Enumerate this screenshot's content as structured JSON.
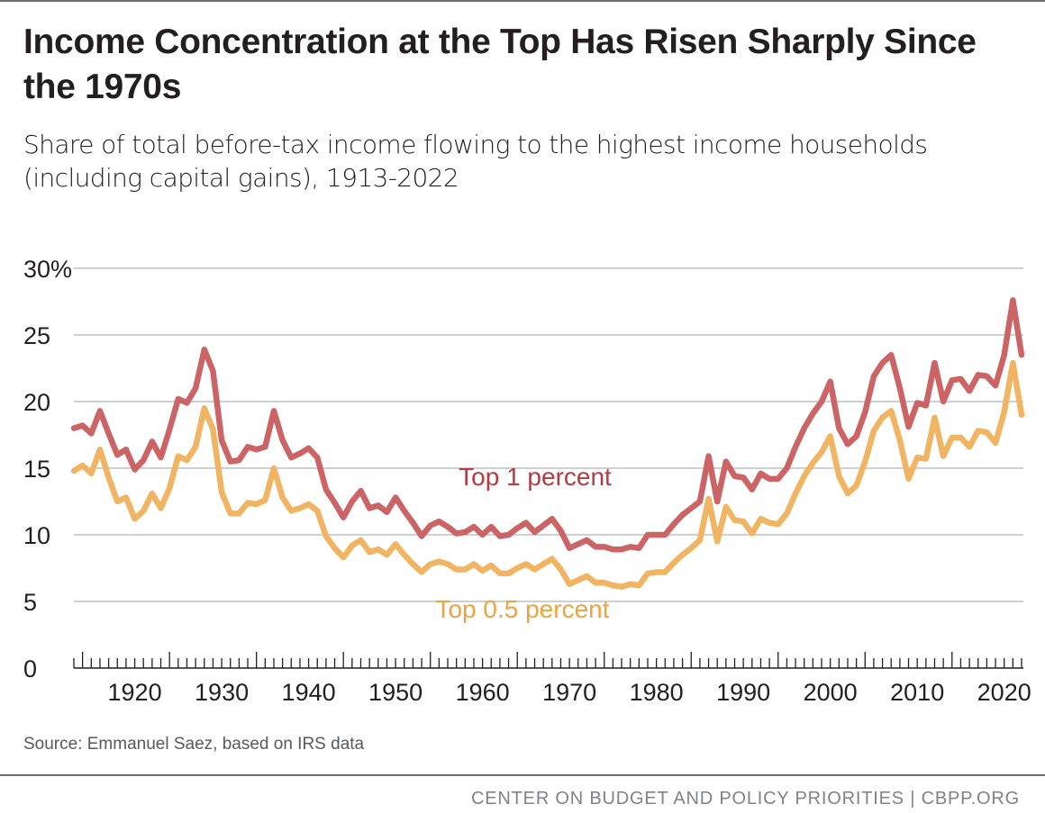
{
  "title": "Income Concentration at the Top Has Risen Sharply Since the 1970s",
  "subtitle": "Share of total before-tax income flowing to the highest income households (including capital gains), 1913-2022",
  "source": "Source: Emmanuel Saez, based on IRS data",
  "footer": "CENTER ON BUDGET AND POLICY PRIORITIES | CBPP.ORG",
  "colors": {
    "top1": "#cc6365",
    "top05": "#f0b463",
    "top1_label": "#b83a3f",
    "top05_label": "#eda33f",
    "grid": "#b1b3b6",
    "axis": "#231f20"
  },
  "chart_data": {
    "type": "line",
    "title": "Income Concentration at the Top Has Risen Sharply Since the 1970s",
    "xlabel": "",
    "ylabel": "",
    "xlim": [
      1913,
      2022
    ],
    "ylim": [
      0,
      30
    ],
    "y_ticks": [
      0,
      5,
      10,
      15,
      20,
      25,
      30
    ],
    "y_tick_labels": [
      "0",
      "5",
      "10",
      "15",
      "20",
      "25",
      "30%"
    ],
    "x_tick_labels": [
      "1920",
      "1930",
      "1940",
      "1950",
      "1960",
      "1970",
      "1980",
      "1990",
      "2000",
      "2010",
      "2020"
    ],
    "grid": true,
    "x": [
      1913,
      1914,
      1915,
      1916,
      1917,
      1918,
      1919,
      1920,
      1921,
      1922,
      1923,
      1924,
      1925,
      1926,
      1927,
      1928,
      1929,
      1930,
      1931,
      1932,
      1933,
      1934,
      1935,
      1936,
      1937,
      1938,
      1939,
      1940,
      1941,
      1942,
      1943,
      1944,
      1945,
      1946,
      1947,
      1948,
      1949,
      1950,
      1951,
      1952,
      1953,
      1954,
      1955,
      1956,
      1957,
      1958,
      1959,
      1960,
      1961,
      1962,
      1963,
      1964,
      1965,
      1966,
      1967,
      1968,
      1969,
      1970,
      1971,
      1972,
      1973,
      1974,
      1975,
      1976,
      1977,
      1978,
      1979,
      1980,
      1981,
      1982,
      1983,
      1984,
      1985,
      1986,
      1987,
      1988,
      1989,
      1990,
      1991,
      1992,
      1993,
      1994,
      1995,
      1996,
      1997,
      1998,
      1999,
      2000,
      2001,
      2002,
      2003,
      2004,
      2005,
      2006,
      2007,
      2008,
      2009,
      2010,
      2011,
      2012,
      2013,
      2014,
      2015,
      2016,
      2017,
      2018,
      2019,
      2020,
      2021,
      2022
    ],
    "series": [
      {
        "name": "Top 1 percent",
        "label": "Top 1 percent",
        "values": [
          18.0,
          18.2,
          17.6,
          19.3,
          17.6,
          16.0,
          16.4,
          14.9,
          15.6,
          17.0,
          15.8,
          17.9,
          20.2,
          19.9,
          21.0,
          23.9,
          22.3,
          17.1,
          15.5,
          15.6,
          16.6,
          16.4,
          16.6,
          19.3,
          17.1,
          15.8,
          16.1,
          16.5,
          15.8,
          13.4,
          12.4,
          11.3,
          12.5,
          13.3,
          12.0,
          12.2,
          11.7,
          12.8,
          11.8,
          10.9,
          9.9,
          10.7,
          11.0,
          10.6,
          10.1,
          10.2,
          10.6,
          10.0,
          10.6,
          9.9,
          10.0,
          10.5,
          10.9,
          10.2,
          10.7,
          11.2,
          10.3,
          9.0,
          9.3,
          9.6,
          9.1,
          9.1,
          8.9,
          8.9,
          9.1,
          9.0,
          10.0,
          10.0,
          10.0,
          10.8,
          11.5,
          12.0,
          12.5,
          15.9,
          12.5,
          15.5,
          14.4,
          14.3,
          13.4,
          14.6,
          14.2,
          14.2,
          15.0,
          16.6,
          18.0,
          19.1,
          20.0,
          21.5,
          18.0,
          16.8,
          17.4,
          19.2,
          21.9,
          22.9,
          23.5,
          21.0,
          18.1,
          19.9,
          19.7,
          22.9,
          20.0,
          21.6,
          21.7,
          20.8,
          22.0,
          21.9,
          21.2,
          23.5,
          27.6,
          23.5
        ]
      },
      {
        "name": "Top 0.5 percent",
        "label": "Top 0.5 percent",
        "values": [
          14.8,
          15.2,
          14.6,
          16.4,
          14.3,
          12.5,
          12.8,
          11.2,
          11.8,
          13.1,
          12.0,
          13.5,
          15.9,
          15.6,
          16.6,
          19.5,
          17.9,
          13.2,
          11.6,
          11.6,
          12.4,
          12.3,
          12.6,
          15.0,
          12.8,
          11.8,
          12.0,
          12.3,
          11.8,
          9.9,
          9.0,
          8.3,
          9.2,
          9.6,
          8.7,
          8.9,
          8.5,
          9.3,
          8.5,
          7.8,
          7.2,
          7.8,
          8.0,
          7.8,
          7.4,
          7.4,
          7.8,
          7.3,
          7.7,
          7.1,
          7.1,
          7.5,
          7.8,
          7.4,
          7.8,
          8.2,
          7.4,
          6.3,
          6.6,
          6.9,
          6.4,
          6.4,
          6.2,
          6.1,
          6.3,
          6.2,
          7.1,
          7.2,
          7.2,
          7.9,
          8.5,
          9.0,
          9.6,
          12.7,
          9.5,
          12.1,
          11.1,
          11.0,
          10.1,
          11.2,
          10.9,
          10.8,
          11.6,
          13.1,
          14.4,
          15.4,
          16.2,
          17.4,
          14.4,
          13.1,
          13.7,
          15.5,
          17.8,
          18.8,
          19.3,
          17.1,
          14.2,
          15.8,
          15.7,
          18.8,
          15.9,
          17.3,
          17.3,
          16.6,
          17.8,
          17.7,
          16.9,
          19.2,
          22.9,
          19.0
        ]
      }
    ],
    "annotations": [
      "Top 1 percent",
      "Top 0.5 percent"
    ]
  }
}
